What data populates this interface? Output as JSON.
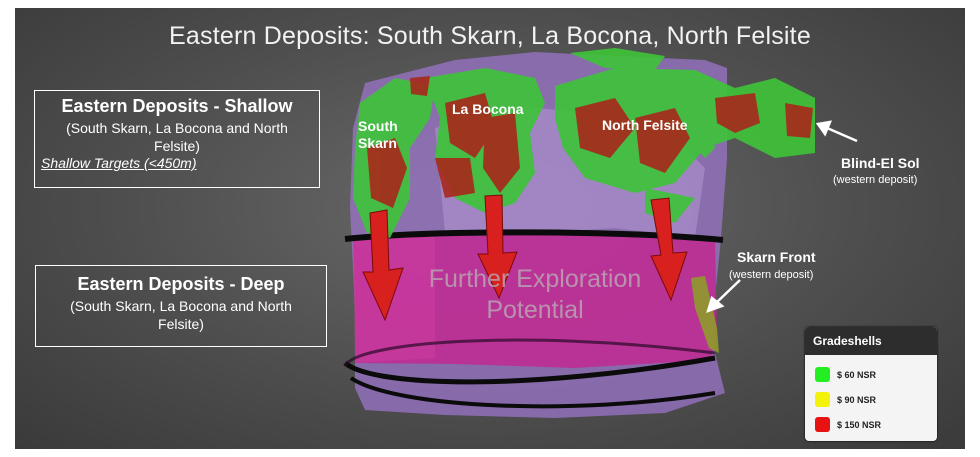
{
  "title": "Eastern Deposits: South Skarn, La Bocona, North Felsite",
  "shallow_box": {
    "heading": "Eastern Deposits - Shallow",
    "subtitle": "(South Skarn, La Bocona and North Felsite)",
    "link": "Shallow Targets (<450m)"
  },
  "deep_box": {
    "heading": "Eastern Deposits - Deep",
    "subtitle": "(South Skarn, La Bocona and North Felsite)"
  },
  "labels": {
    "south_skarn": "South Skarn",
    "la_bocona": "La Bocona",
    "north_felsite": "North Felsite",
    "blind_el_sol": "Blind-El Sol",
    "blind_el_sol_sub": "(western deposit)",
    "skarn_front": "Skarn Front",
    "skarn_front_sub": "(western deposit)"
  },
  "potential_text_1": "Further Exploration",
  "potential_text_2": "Potential",
  "legend": {
    "title": "Gradeshells",
    "items": [
      {
        "label": "$ 60 NSR",
        "color": "#22ee22"
      },
      {
        "label": "$ 90 NSR",
        "color": "#f2f20a"
      },
      {
        "label": "$ 150 NSR",
        "color": "#e81212"
      }
    ]
  },
  "colors": {
    "shell": "#9b74c9",
    "core": "#c8208d",
    "arrow": "#d8201e",
    "green": "#3fc23a",
    "ore": "#a8281c"
  }
}
